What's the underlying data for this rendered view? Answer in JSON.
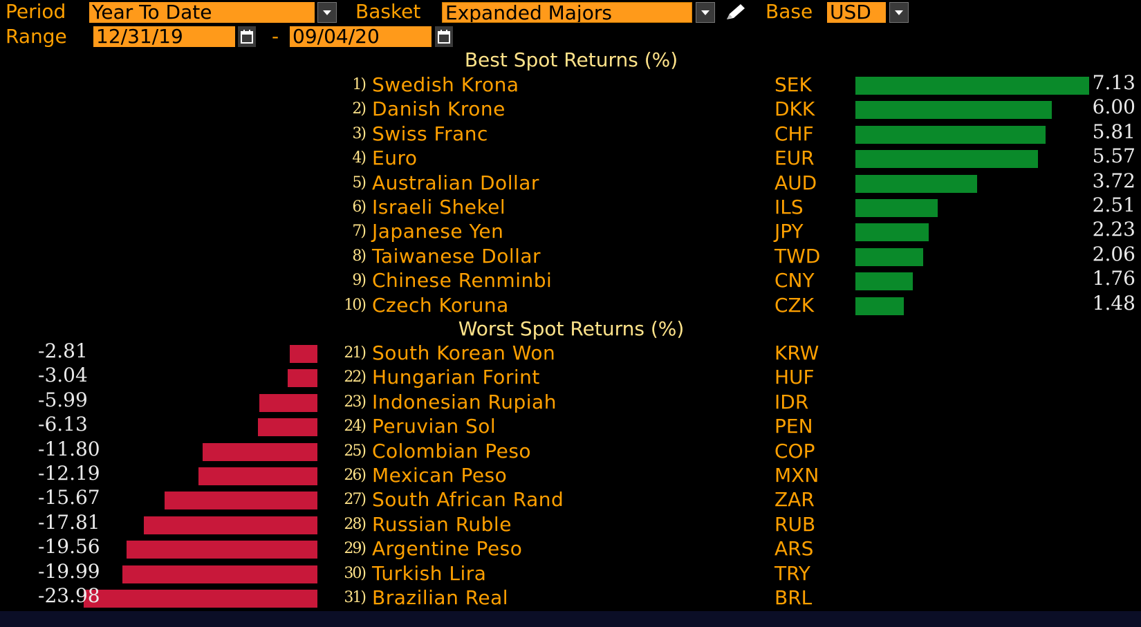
{
  "controls": {
    "period_label": "Period",
    "period_value": "Year To Date",
    "basket_label": "Basket",
    "basket_value": "Expanded Majors",
    "base_label": "Base",
    "base_value": "USD",
    "range_label": "Range",
    "range_start": "12/31/19",
    "range_separator": "-",
    "range_end": "09/04/20"
  },
  "icons": {
    "dropdown": "chevron-down-icon",
    "edit": "pencil-icon",
    "calendar": "calendar-icon"
  },
  "colors": {
    "label": "#ffa000",
    "field_bg": "#ff9a1a",
    "title": "#ffe38a",
    "positive_bar": "#0a8a2a",
    "negative_bar": "#c8183a"
  },
  "best": {
    "title": "Best Spot Returns (%)",
    "rows": [
      {
        "rank": "1)",
        "name": "Swedish Krona",
        "code": "SEK",
        "value": "7.13"
      },
      {
        "rank": "2)",
        "name": "Danish Krone",
        "code": "DKK",
        "value": "6.00"
      },
      {
        "rank": "3)",
        "name": "Swiss Franc",
        "code": "CHF",
        "value": "5.81"
      },
      {
        "rank": "4)",
        "name": "Euro",
        "code": "EUR",
        "value": "5.57"
      },
      {
        "rank": "5)",
        "name": "Australian Dollar",
        "code": "AUD",
        "value": "3.72"
      },
      {
        "rank": "6)",
        "name": "Israeli Shekel",
        "code": "ILS",
        "value": "2.51"
      },
      {
        "rank": "7)",
        "name": "Japanese Yen",
        "code": "JPY",
        "value": "2.23"
      },
      {
        "rank": "8)",
        "name": "Taiwanese Dollar",
        "code": "TWD",
        "value": "2.06"
      },
      {
        "rank": "9)",
        "name": "Chinese Renminbi",
        "code": "CNY",
        "value": "1.76"
      },
      {
        "rank": "10)",
        "name": "Czech Koruna",
        "code": "CZK",
        "value": "1.48"
      }
    ]
  },
  "worst": {
    "title": "Worst Spot Returns (%)",
    "rows": [
      {
        "rank": "21)",
        "name": "South Korean Won",
        "code": "KRW",
        "value": "-2.81"
      },
      {
        "rank": "22)",
        "name": "Hungarian Forint",
        "code": "HUF",
        "value": "-3.04"
      },
      {
        "rank": "23)",
        "name": "Indonesian Rupiah",
        "code": "IDR",
        "value": "-5.99"
      },
      {
        "rank": "24)",
        "name": "Peruvian Sol",
        "code": "PEN",
        "value": "-6.13"
      },
      {
        "rank": "25)",
        "name": "Colombian Peso",
        "code": "COP",
        "value": "-11.80"
      },
      {
        "rank": "26)",
        "name": "Mexican Peso",
        "code": "MXN",
        "value": "-12.19"
      },
      {
        "rank": "27)",
        "name": "South African Rand",
        "code": "ZAR",
        "value": "-15.67"
      },
      {
        "rank": "28)",
        "name": "Russian Ruble",
        "code": "RUB",
        "value": "-17.81"
      },
      {
        "rank": "29)",
        "name": "Argentine Peso",
        "code": "ARS",
        "value": "-19.56"
      },
      {
        "rank": "30)",
        "name": "Turkish Lira",
        "code": "TRY",
        "value": "-19.99"
      },
      {
        "rank": "31)",
        "name": "Brazilian Real",
        "code": "BRL",
        "value": "-23.98"
      }
    ]
  }
}
